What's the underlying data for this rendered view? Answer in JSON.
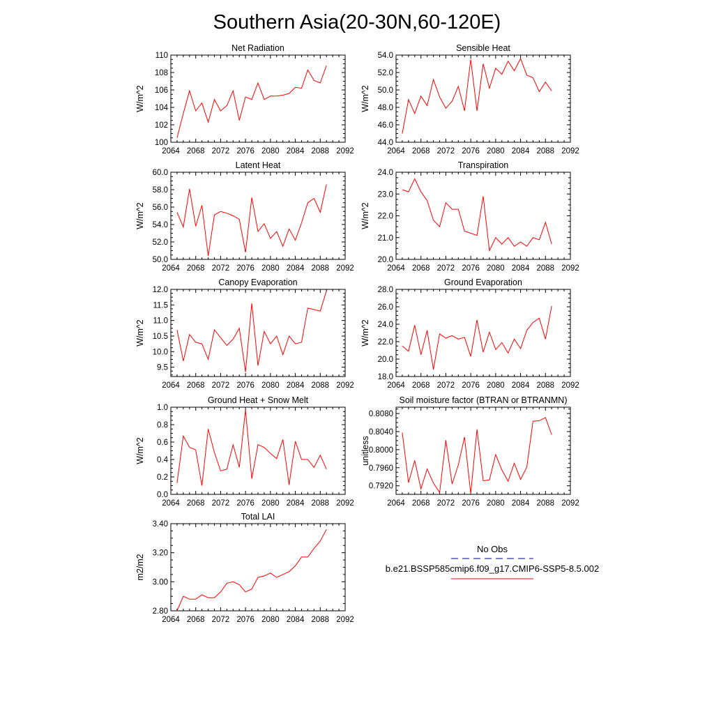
{
  "title": "Southern Asia(20-30N,60-120E)",
  "colors": {
    "model_line": "#ff0000",
    "obs_line": "#3333aa",
    "axis": "#000000"
  },
  "chart_data": [
    {
      "type": "line",
      "title": "Net Radiation",
      "ylabel": "W/m^2",
      "xlim": [
        2064,
        2092
      ],
      "ylim": [
        100,
        110
      ],
      "x_ticks": [
        "2064",
        "2068",
        "2072",
        "2076",
        "2080",
        "2084",
        "2088",
        "2092"
      ],
      "y_ticks": [
        "100",
        "102",
        "104",
        "106",
        "108",
        "110"
      ],
      "series": [
        {
          "x": [
            2065,
            2066,
            2067,
            2068,
            2069,
            2070,
            2071,
            2072,
            2073,
            2074,
            2075,
            2076,
            2077,
            2078,
            2079,
            2080,
            2081,
            2082,
            2083,
            2084,
            2085,
            2086,
            2087,
            2088,
            2089
          ],
          "values": [
            100.5,
            103.3,
            105.9,
            103.6,
            104.5,
            102.3,
            104.9,
            103.6,
            104.2,
            105.9,
            102.5,
            105.2,
            104.9,
            106.8,
            104.9,
            105.3,
            105.3,
            105.4,
            105.6,
            106.3,
            106.2,
            108.3,
            107.1,
            106.8,
            108.8
          ]
        }
      ]
    },
    {
      "type": "line",
      "title": "Sensible Heat",
      "ylabel": "W/m^2",
      "xlim": [
        2064,
        2092
      ],
      "ylim": [
        44,
        54
      ],
      "x_ticks": [
        "2064",
        "2068",
        "2072",
        "2076",
        "2080",
        "2084",
        "2088",
        "2092"
      ],
      "y_ticks": [
        "44.0",
        "46.0",
        "48.0",
        "50.0",
        "52.0",
        "54.0"
      ],
      "series": [
        {
          "x": [
            2065,
            2066,
            2067,
            2068,
            2069,
            2070,
            2071,
            2072,
            2073,
            2074,
            2075,
            2076,
            2077,
            2078,
            2079,
            2080,
            2081,
            2082,
            2083,
            2084,
            2085,
            2086,
            2087,
            2088,
            2089
          ],
          "values": [
            45.0,
            48.9,
            47.3,
            49.3,
            48.2,
            51.2,
            49.2,
            47.9,
            48.7,
            50.4,
            47.6,
            53.5,
            47.6,
            53.0,
            50.2,
            52.5,
            51.8,
            53.3,
            52.2,
            53.6,
            51.7,
            51.4,
            49.8,
            50.9,
            49.9
          ]
        }
      ]
    },
    {
      "type": "line",
      "title": "Latent Heat",
      "ylabel": "W/m^2",
      "xlim": [
        2064,
        2092
      ],
      "ylim": [
        50,
        60
      ],
      "x_ticks": [
        "2064",
        "2068",
        "2072",
        "2076",
        "2080",
        "2084",
        "2088",
        "2092"
      ],
      "y_ticks": [
        "50.0",
        "52.0",
        "54.0",
        "56.0",
        "58.0",
        "60.0"
      ],
      "series": [
        {
          "x": [
            2065,
            2066,
            2067,
            2068,
            2069,
            2070,
            2071,
            2072,
            2073,
            2074,
            2075,
            2076,
            2077,
            2078,
            2079,
            2080,
            2081,
            2082,
            2083,
            2084,
            2085,
            2086,
            2087,
            2088,
            2089
          ],
          "values": [
            55.4,
            53.7,
            58.1,
            53.8,
            56.2,
            50.4,
            55.1,
            55.5,
            55.3,
            55.0,
            54.6,
            50.8,
            57.1,
            53.2,
            54.1,
            52.4,
            53.2,
            51.5,
            53.5,
            52.2,
            54.2,
            56.5,
            57.0,
            55.4,
            58.6
          ]
        }
      ]
    },
    {
      "type": "line",
      "title": "Transpiration",
      "ylabel": "W/m^2",
      "xlim": [
        2064,
        2092
      ],
      "ylim": [
        20,
        24
      ],
      "x_ticks": [
        "2064",
        "2068",
        "2072",
        "2076",
        "2080",
        "2084",
        "2088",
        "2092"
      ],
      "y_ticks": [
        "20.0",
        "21.0",
        "22.0",
        "23.0",
        "24.0"
      ],
      "series": [
        {
          "x": [
            2065,
            2066,
            2067,
            2068,
            2069,
            2070,
            2071,
            2072,
            2073,
            2074,
            2075,
            2076,
            2077,
            2078,
            2079,
            2080,
            2081,
            2082,
            2083,
            2084,
            2085,
            2086,
            2087,
            2088,
            2089
          ],
          "values": [
            23.2,
            23.1,
            23.7,
            23.1,
            22.7,
            21.8,
            21.5,
            22.6,
            22.3,
            22.3,
            21.3,
            21.2,
            21.1,
            22.9,
            20.4,
            21.0,
            20.7,
            21.0,
            20.6,
            20.8,
            20.6,
            21.0,
            20.9,
            21.7,
            20.7
          ]
        }
      ]
    },
    {
      "type": "line",
      "title": "Canopy Evaporation",
      "ylabel": "W/m^2",
      "xlim": [
        2064,
        2092
      ],
      "ylim": [
        9.2,
        12.0
      ],
      "x_ticks": [
        "2064",
        "2068",
        "2072",
        "2076",
        "2080",
        "2084",
        "2088",
        "2092"
      ],
      "y_ticks": [
        "9.5",
        "10.0",
        "10.5",
        "11.0",
        "11.5",
        "12.0"
      ],
      "series": [
        {
          "x": [
            2065,
            2066,
            2067,
            2068,
            2069,
            2070,
            2071,
            2072,
            2073,
            2074,
            2075,
            2076,
            2077,
            2078,
            2079,
            2080,
            2081,
            2082,
            2083,
            2084,
            2085,
            2086,
            2087,
            2088,
            2089
          ],
          "values": [
            10.7,
            9.7,
            10.55,
            10.3,
            10.25,
            9.75,
            10.7,
            10.45,
            10.2,
            10.4,
            10.75,
            9.35,
            11.55,
            9.55,
            10.65,
            10.25,
            10.5,
            9.9,
            10.5,
            10.25,
            10.3,
            11.4,
            11.35,
            11.3,
            11.95
          ]
        }
      ]
    },
    {
      "type": "line",
      "title": "Ground Evaporation",
      "ylabel": "W/m^2",
      "xlim": [
        2064,
        2092
      ],
      "ylim": [
        18,
        28
      ],
      "x_ticks": [
        "2064",
        "2068",
        "2072",
        "2076",
        "2080",
        "2084",
        "2088",
        "2092"
      ],
      "y_ticks": [
        "18.0",
        "20.0",
        "22.0",
        "24.0",
        "26.0",
        "28.0"
      ],
      "series": [
        {
          "x": [
            2065,
            2066,
            2067,
            2068,
            2069,
            2070,
            2071,
            2072,
            2073,
            2074,
            2075,
            2076,
            2077,
            2078,
            2079,
            2080,
            2081,
            2082,
            2083,
            2084,
            2085,
            2086,
            2087,
            2088,
            2089
          ],
          "values": [
            21.5,
            20.9,
            23.9,
            20.5,
            23.3,
            18.8,
            22.9,
            22.4,
            22.7,
            22.3,
            22.5,
            20.3,
            24.5,
            20.8,
            23.1,
            21.1,
            21.9,
            20.7,
            22.3,
            21.2,
            23.3,
            24.2,
            24.7,
            22.3,
            26.1
          ]
        }
      ]
    },
    {
      "type": "line",
      "title": "Ground Heat + Snow Melt",
      "ylabel": "W/m^2",
      "xlim": [
        2064,
        2092
      ],
      "ylim": [
        0,
        1
      ],
      "x_ticks": [
        "2064",
        "2068",
        "2072",
        "2076",
        "2080",
        "2084",
        "2088",
        "2092"
      ],
      "y_ticks": [
        "0.0",
        "0.2",
        "0.4",
        "0.6",
        "0.8",
        "1.0"
      ],
      "series": [
        {
          "x": [
            2065,
            2066,
            2067,
            2068,
            2069,
            2070,
            2071,
            2072,
            2073,
            2074,
            2075,
            2076,
            2077,
            2078,
            2079,
            2080,
            2081,
            2082,
            2083,
            2084,
            2085,
            2086,
            2087,
            2088,
            2089
          ],
          "values": [
            0.13,
            0.67,
            0.54,
            0.51,
            0.1,
            0.75,
            0.48,
            0.27,
            0.29,
            0.57,
            0.31,
            0.97,
            0.18,
            0.57,
            0.54,
            0.47,
            0.41,
            0.63,
            0.11,
            0.61,
            0.4,
            0.4,
            0.31,
            0.45,
            0.29
          ]
        }
      ]
    },
    {
      "type": "line",
      "title": "Soil moisture factor (BTRAN or BTRANMN)",
      "ylabel": "unitless",
      "xlim": [
        2064,
        2092
      ],
      "ylim": [
        0.7901,
        0.8094
      ],
      "x_ticks": [
        "2064",
        "2068",
        "2072",
        "2076",
        "2080",
        "2084",
        "2088",
        "2092"
      ],
      "y_ticks": [
        "0.7920",
        "0.7960",
        "0.8000",
        "0.8040",
        "0.8080"
      ],
      "series": [
        {
          "x": [
            2065,
            2066,
            2067,
            2068,
            2069,
            2070,
            2071,
            2072,
            2073,
            2074,
            2075,
            2076,
            2077,
            2078,
            2079,
            2080,
            2081,
            2082,
            2083,
            2084,
            2085,
            2086,
            2087,
            2088,
            2089
          ],
          "values": [
            0.8038,
            0.7927,
            0.7976,
            0.7913,
            0.7957,
            0.7926,
            0.7905,
            0.8021,
            0.7924,
            0.7966,
            0.8028,
            0.7903,
            0.8045,
            0.7931,
            0.7933,
            0.7989,
            0.7955,
            0.793,
            0.797,
            0.7934,
            0.7961,
            0.8063,
            0.8064,
            0.8071,
            0.8033
          ]
        }
      ]
    },
    {
      "type": "line",
      "title": "Total LAI",
      "ylabel": "m2/m2",
      "xlim": [
        2064,
        2092
      ],
      "ylim": [
        2.8,
        3.4
      ],
      "x_ticks": [
        "2064",
        "2068",
        "2072",
        "2076",
        "2080",
        "2084",
        "2088",
        "2092"
      ],
      "y_ticks": [
        "2.80",
        "3.00",
        "3.20",
        "3.40"
      ],
      "series": [
        {
          "x": [
            2065,
            2066,
            2067,
            2068,
            2069,
            2070,
            2071,
            2072,
            2073,
            2074,
            2075,
            2076,
            2077,
            2078,
            2079,
            2080,
            2081,
            2082,
            2083,
            2084,
            2085,
            2086,
            2087,
            2088,
            2089
          ],
          "values": [
            2.8,
            2.9,
            2.88,
            2.88,
            2.91,
            2.89,
            2.89,
            2.93,
            2.99,
            3.0,
            2.98,
            2.93,
            2.95,
            3.03,
            3.04,
            3.06,
            3.03,
            3.05,
            3.07,
            3.11,
            3.17,
            3.17,
            3.23,
            3.28,
            3.36
          ]
        }
      ]
    }
  ],
  "legend": {
    "items": [
      {
        "label": "No Obs",
        "style": "dashed"
      },
      {
        "label": "b.e21.BSSP585cmip6.f09_g17.CMIP6-SSP5-8.5.002",
        "style": "solid"
      }
    ]
  }
}
